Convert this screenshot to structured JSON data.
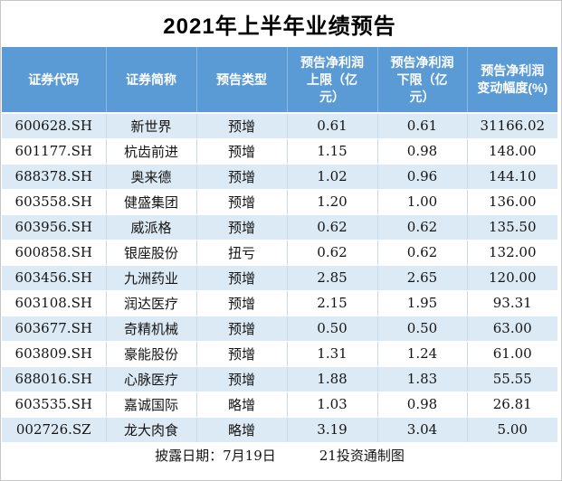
{
  "title": "2021年上半年业绩预告",
  "table": {
    "columns": [
      {
        "label": "证券代码"
      },
      {
        "label": "证券简称"
      },
      {
        "label": "预告类型"
      },
      {
        "label": "预告净利润\n上限（亿\n元）"
      },
      {
        "label": "预告净利润\n下限（亿\n元）"
      },
      {
        "label": "预告净利润\n变动幅度(%)"
      }
    ],
    "rows": [
      [
        "600628.SH",
        "新世界",
        "预增",
        "0.61",
        "0.61",
        "31166.02"
      ],
      [
        "601177.SH",
        "杭齿前进",
        "预增",
        "1.15",
        "0.98",
        "148.00"
      ],
      [
        "688378.SH",
        "奥来德",
        "预增",
        "1.02",
        "0.96",
        "144.10"
      ],
      [
        "603558.SH",
        "健盛集团",
        "预增",
        "1.20",
        "1.00",
        "136.00"
      ],
      [
        "603956.SH",
        "威派格",
        "预增",
        "0.62",
        "0.62",
        "135.50"
      ],
      [
        "600858.SH",
        "银座股份",
        "扭亏",
        "0.62",
        "0.62",
        "132.00"
      ],
      [
        "603456.SH",
        "九洲药业",
        "预增",
        "2.85",
        "2.65",
        "120.00"
      ],
      [
        "603108.SH",
        "润达医疗",
        "预增",
        "2.15",
        "1.95",
        "93.31"
      ],
      [
        "603677.SH",
        "奇精机械",
        "预增",
        "0.50",
        "0.50",
        "63.00"
      ],
      [
        "603809.SH",
        "豪能股份",
        "预增",
        "1.31",
        "1.24",
        "61.00"
      ],
      [
        "688016.SH",
        "心脉医疗",
        "预增",
        "1.88",
        "1.83",
        "55.55"
      ],
      [
        "603535.SH",
        "嘉诚国际",
        "略增",
        "1.03",
        "0.98",
        "26.81"
      ],
      [
        "002726.SZ",
        "龙大肉食",
        "略增",
        "3.19",
        "3.04",
        "5.00"
      ]
    ]
  },
  "footer": {
    "disclosure_label": "披露日期：7月19日",
    "credit": "21投资通制图"
  },
  "colors": {
    "header_bg": "#5b9bd5",
    "band_bg": "#dceaf6",
    "grid_line": "#c9d9ea",
    "title_color": "#000000"
  },
  "chart_data": {
    "type": "table",
    "title": "2021年上半年业绩预告",
    "columns": [
      "证券代码",
      "证券简称",
      "预告类型",
      "预告净利润上限（亿元）",
      "预告净利润下限（亿元）",
      "预告净利润变动幅度(%)"
    ],
    "rows": [
      [
        "600628.SH",
        "新世界",
        "预增",
        0.61,
        0.61,
        31166.02
      ],
      [
        "601177.SH",
        "杭齿前进",
        "预增",
        1.15,
        0.98,
        148.0
      ],
      [
        "688378.SH",
        "奥来德",
        "预增",
        1.02,
        0.96,
        144.1
      ],
      [
        "603558.SH",
        "健盛集团",
        "预增",
        1.2,
        1.0,
        136.0
      ],
      [
        "603956.SH",
        "威派格",
        "预增",
        0.62,
        0.62,
        135.5
      ],
      [
        "600858.SH",
        "银座股份",
        "扭亏",
        0.62,
        0.62,
        132.0
      ],
      [
        "603456.SH",
        "九洲药业",
        "预增",
        2.85,
        2.65,
        120.0
      ],
      [
        "603108.SH",
        "润达医疗",
        "预增",
        2.15,
        1.95,
        93.31
      ],
      [
        "603677.SH",
        "奇精机械",
        "预增",
        0.5,
        0.5,
        63.0
      ],
      [
        "603809.SH",
        "豪能股份",
        "预增",
        1.31,
        1.24,
        61.0
      ],
      [
        "688016.SH",
        "心脉医疗",
        "预增",
        1.88,
        1.83,
        55.55
      ],
      [
        "603535.SH",
        "嘉诚国际",
        "略增",
        1.03,
        0.98,
        26.81
      ],
      [
        "002726.SZ",
        "龙大肉食",
        "略增",
        3.19,
        3.04,
        5.0
      ]
    ],
    "notes": [
      "披露日期：7月19日",
      "21投资通制图"
    ],
    "layout": {
      "banded_rows": true,
      "header_position": "top"
    }
  }
}
